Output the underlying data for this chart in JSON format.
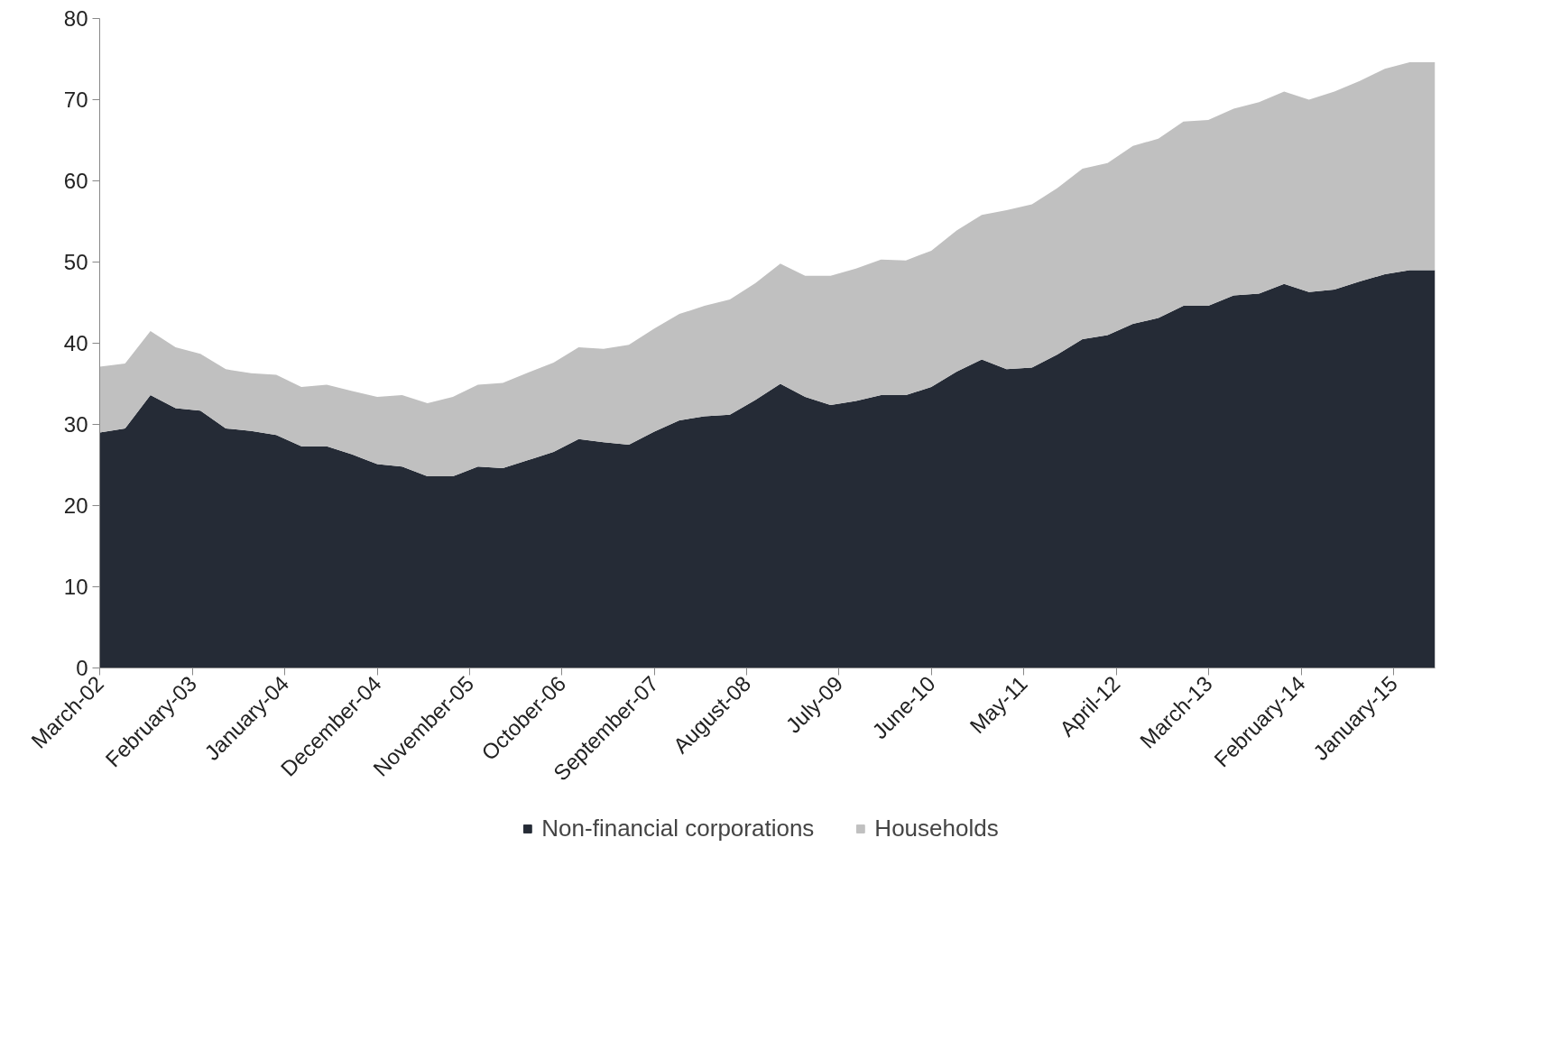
{
  "chart_data": {
    "type": "area",
    "stacked": true,
    "legend": "bottom",
    "x": [
      "2002-03",
      "2002-06",
      "2002-09",
      "2002-12",
      "2003-03",
      "2003-06",
      "2003-09",
      "2003-12",
      "2004-03",
      "2004-06",
      "2004-09",
      "2004-12",
      "2005-03",
      "2005-06",
      "2005-09",
      "2005-12",
      "2006-03",
      "2006-06",
      "2006-09",
      "2006-12",
      "2007-03",
      "2007-06",
      "2007-09",
      "2007-12",
      "2008-03",
      "2008-06",
      "2008-09",
      "2008-12",
      "2009-03",
      "2009-06",
      "2009-09",
      "2009-12",
      "2010-03",
      "2010-06",
      "2010-09",
      "2010-12",
      "2011-03",
      "2011-06",
      "2011-09",
      "2011-12",
      "2012-03",
      "2012-06",
      "2012-09",
      "2012-12",
      "2013-03",
      "2013-06",
      "2013-09",
      "2013-12",
      "2014-03",
      "2014-06",
      "2014-09",
      "2014-12",
      "2015-03",
      "2015-06"
    ],
    "series": [
      {
        "name": "Non-financial corporations",
        "color": "#252b36",
        "values": [
          29.0,
          29.5,
          33.6,
          32.0,
          31.7,
          29.5,
          29.2,
          28.7,
          27.3,
          27.3,
          26.3,
          25.1,
          24.8,
          23.6,
          23.6,
          24.8,
          24.6,
          25.6,
          26.6,
          28.2,
          27.8,
          27.5,
          29.1,
          30.5,
          31.0,
          31.2,
          33.0,
          35.0,
          33.4,
          32.4,
          32.9,
          33.6,
          33.6,
          34.6,
          36.5,
          38.0,
          36.8,
          37.0,
          38.6,
          40.5,
          41.0,
          42.4,
          43.1,
          44.6,
          44.6,
          45.9,
          46.1,
          47.3,
          46.3,
          46.6,
          47.6,
          48.5,
          49.0,
          49.0
        ]
      },
      {
        "name": "Households",
        "color": "#c0c0c0",
        "values": [
          8.1,
          8.0,
          7.9,
          7.5,
          7.0,
          7.3,
          7.1,
          7.4,
          7.3,
          7.6,
          7.8,
          8.3,
          8.8,
          9.0,
          9.8,
          10.1,
          10.5,
          10.8,
          11.0,
          11.3,
          11.5,
          12.3,
          12.7,
          13.1,
          13.6,
          14.2,
          14.4,
          14.8,
          14.9,
          15.9,
          16.3,
          16.7,
          16.6,
          16.8,
          17.4,
          17.8,
          19.6,
          20.1,
          20.5,
          21.0,
          21.2,
          21.9,
          22.1,
          22.7,
          22.9,
          23.0,
          23.6,
          23.7,
          23.7,
          24.4,
          24.7,
          25.3,
          25.6,
          25.6
        ]
      }
    ],
    "xlim": [
      "2002-03",
      "2015-06"
    ],
    "xticks": [
      {
        "value": "2002-03",
        "label": "March-02"
      },
      {
        "value": "2003-02",
        "label": "February-03"
      },
      {
        "value": "2004-01",
        "label": "January-04"
      },
      {
        "value": "2004-12",
        "label": "December-04"
      },
      {
        "value": "2005-11",
        "label": "November-05"
      },
      {
        "value": "2006-10",
        "label": "October-06"
      },
      {
        "value": "2007-09",
        "label": "September-07"
      },
      {
        "value": "2008-08",
        "label": "August-08"
      },
      {
        "value": "2009-07",
        "label": "July-09"
      },
      {
        "value": "2010-06",
        "label": "June-10"
      },
      {
        "value": "2011-05",
        "label": "May-11"
      },
      {
        "value": "2012-04",
        "label": "April-12"
      },
      {
        "value": "2013-03",
        "label": "March-13"
      },
      {
        "value": "2014-02",
        "label": "February-14"
      },
      {
        "value": "2015-01",
        "label": "January-15"
      }
    ],
    "ylim": [
      0,
      80
    ],
    "yticks": [
      0,
      10,
      20,
      30,
      40,
      50,
      60,
      70,
      80
    ]
  }
}
